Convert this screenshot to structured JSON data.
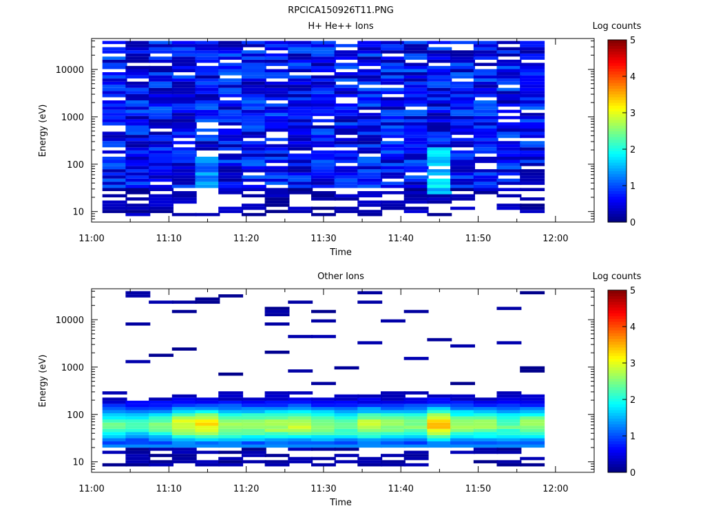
{
  "figure": {
    "filename": "RPCICA150926T11.PNG"
  },
  "colormap": [
    "#00007f",
    "#0000ff",
    "#007fff",
    "#00ffff",
    "#7fff7f",
    "#ffff00",
    "#ff7f00",
    "#ff0000",
    "#7f0000"
  ],
  "time_bins": [
    "11:03",
    "11:06",
    "11:09",
    "11:12",
    "11:15",
    "11:18",
    "11:21",
    "11:24",
    "11:27",
    "11:30",
    "11:33",
    "11:36",
    "11:39",
    "11:42",
    "11:45",
    "11:48",
    "11:51",
    "11:54",
    "11:57"
  ],
  "chart_data": [
    {
      "type": "heatmap",
      "title": "H+ He++ Ions",
      "xlabel": "Time",
      "ylabel": "Energy (eV)",
      "colorbar_label": "Log counts",
      "xlim": [
        "11:00",
        "12:05"
      ],
      "xticks": [
        "11:00",
        "11:10",
        "11:20",
        "11:30",
        "11:40",
        "11:50",
        "12:00"
      ],
      "ylim": [
        6,
        45000
      ],
      "yscale": "log",
      "yticks": [
        "10",
        "100",
        "1000",
        "10000"
      ],
      "clim": [
        0,
        5
      ],
      "cticks": [
        "0",
        "1",
        "2",
        "3",
        "4",
        "5"
      ],
      "pattern": "ion-noise",
      "description_levels": "log counts mostly 0-1.5 across all energies 8 eV to 40 keV, one column near 11:46 reaching about 2 between 25-200 eV"
    },
    {
      "type": "heatmap",
      "title": "Other Ions",
      "xlabel": "Time",
      "ylabel": "Energy (eV)",
      "colorbar_label": "Log counts",
      "xlim": [
        "11:00",
        "12:05"
      ],
      "xticks": [
        "11:00",
        "11:10",
        "11:20",
        "11:30",
        "11:40",
        "11:50",
        "12:00"
      ],
      "ylim": [
        6,
        45000
      ],
      "yscale": "log",
      "yticks": [
        "10",
        "100",
        "1000",
        "10000"
      ],
      "clim": [
        0,
        5
      ],
      "cticks": [
        "0",
        "1",
        "2",
        "3",
        "4",
        "5"
      ],
      "pattern": "ion-band",
      "band_peak_log_counts": [
        2.3,
        2.1,
        2.4,
        3.0,
        3.2,
        2.8,
        2.7,
        2.8,
        2.8,
        2.6,
        2.5,
        2.8,
        2.6,
        2.6,
        3.4,
        2.7,
        2.6,
        2.4,
        2.7
      ],
      "band_peak_energy_eV": 60,
      "band_range_eV": [
        20,
        400
      ]
    }
  ]
}
